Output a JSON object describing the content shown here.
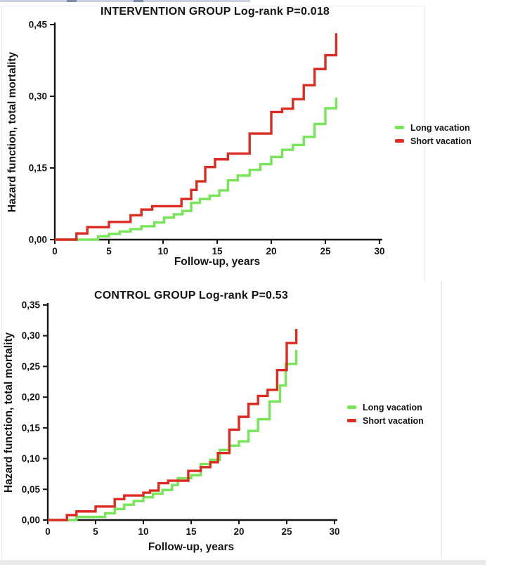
{
  "chart_data": [
    {
      "type": "line",
      "step": true,
      "title": "INTERVENTION GROUP Log-rank P=0.018",
      "xlabel": "Follow-up, years",
      "ylabel": "Hazard function, total mortality",
      "xlim": [
        0,
        30
      ],
      "ylim": [
        0,
        0.45
      ],
      "grid": false,
      "legend_position": "right",
      "x_ticks": [
        "0",
        "5",
        "10",
        "15",
        "20",
        "25",
        "30"
      ],
      "y_ticks": [
        {
          "value": 0.0,
          "label": "0,00"
        },
        {
          "value": 0.15,
          "label": "0,15"
        },
        {
          "value": 0.3,
          "label": "0,30"
        },
        {
          "value": 0.45,
          "label": "0,45"
        }
      ],
      "series": [
        {
          "name": "Long vacation",
          "color": "#76e558",
          "points": [
            [
              0,
              0
            ],
            [
              4,
              0.007
            ],
            [
              5,
              0.012
            ],
            [
              6,
              0.017
            ],
            [
              7,
              0.022
            ],
            [
              8,
              0.028
            ],
            [
              9.2,
              0.036
            ],
            [
              10.1,
              0.046
            ],
            [
              11,
              0.053
            ],
            [
              11.8,
              0.06
            ],
            [
              12.6,
              0.077
            ],
            [
              13.4,
              0.085
            ],
            [
              14.3,
              0.092
            ],
            [
              15.2,
              0.103
            ],
            [
              16,
              0.124
            ],
            [
              16.9,
              0.134
            ],
            [
              18,
              0.146
            ],
            [
              19,
              0.158
            ],
            [
              20,
              0.173
            ],
            [
              21,
              0.188
            ],
            [
              22,
              0.198
            ],
            [
              23,
              0.215
            ],
            [
              24,
              0.242
            ],
            [
              25,
              0.275
            ],
            [
              26,
              0.297
            ]
          ]
        },
        {
          "name": "Short vacation",
          "color": "#dc2b22",
          "points": [
            [
              0,
              0
            ],
            [
              2,
              0.013
            ],
            [
              3,
              0.026
            ],
            [
              5,
              0.037
            ],
            [
              7,
              0.051
            ],
            [
              8,
              0.063
            ],
            [
              9,
              0.07
            ],
            [
              11.7,
              0.085
            ],
            [
              12.6,
              0.104
            ],
            [
              13.1,
              0.122
            ],
            [
              13.9,
              0.152
            ],
            [
              14.8,
              0.168
            ],
            [
              16,
              0.18
            ],
            [
              18,
              0.222
            ],
            [
              20,
              0.267
            ],
            [
              21,
              0.274
            ],
            [
              22,
              0.294
            ],
            [
              23,
              0.323
            ],
            [
              24,
              0.357
            ],
            [
              25,
              0.386
            ],
            [
              26,
              0.432
            ]
          ]
        }
      ]
    },
    {
      "type": "line",
      "step": true,
      "title": "CONTROL GROUP Log-rank P=0.53",
      "xlabel": "Follow-up, years",
      "ylabel": "Hazard function, total mortality",
      "xlim": [
        0,
        30
      ],
      "ylim": [
        0,
        0.35
      ],
      "grid": false,
      "legend_position": "right",
      "x_ticks": [
        "0",
        "5",
        "10",
        "15",
        "20",
        "25",
        "30"
      ],
      "y_ticks": [
        {
          "value": 0.0,
          "label": "0,00"
        },
        {
          "value": 0.05,
          "label": "0,05"
        },
        {
          "value": 0.1,
          "label": "0,10"
        },
        {
          "value": 0.15,
          "label": "0,15"
        },
        {
          "value": 0.2,
          "label": "0,20"
        },
        {
          "value": 0.25,
          "label": "0,25"
        },
        {
          "value": 0.3,
          "label": "0,30"
        },
        {
          "value": 0.35,
          "label": "0,35"
        }
      ],
      "series": [
        {
          "name": "Long vacation",
          "color": "#76e558",
          "points": [
            [
              0,
              0
            ],
            [
              3,
              0.005
            ],
            [
              6,
              0.011
            ],
            [
              7,
              0.018
            ],
            [
              8,
              0.025
            ],
            [
              9,
              0.031
            ],
            [
              10,
              0.037
            ],
            [
              11,
              0.043
            ],
            [
              12,
              0.049
            ],
            [
              13,
              0.057
            ],
            [
              13.6,
              0.068
            ],
            [
              15,
              0.073
            ],
            [
              16,
              0.091
            ],
            [
              17,
              0.098
            ],
            [
              18,
              0.114
            ],
            [
              19,
              0.121
            ],
            [
              20,
              0.128
            ],
            [
              21,
              0.145
            ],
            [
              22,
              0.164
            ],
            [
              23.2,
              0.193
            ],
            [
              24.3,
              0.219
            ],
            [
              24.9,
              0.254
            ],
            [
              26,
              0.277
            ]
          ]
        },
        {
          "name": "Short vacation",
          "color": "#dc2b22",
          "points": [
            [
              0,
              0
            ],
            [
              2,
              0.008
            ],
            [
              3,
              0.014
            ],
            [
              5,
              0.022
            ],
            [
              7,
              0.034
            ],
            [
              8,
              0.04
            ],
            [
              10,
              0.0445
            ],
            [
              10.7,
              0.048
            ],
            [
              11.6,
              0.06
            ],
            [
              12.6,
              0.064
            ],
            [
              14.7,
              0.08
            ],
            [
              16,
              0.086
            ],
            [
              17,
              0.094
            ],
            [
              17.8,
              0.109
            ],
            [
              19,
              0.147
            ],
            [
              20,
              0.168
            ],
            [
              21,
              0.189
            ],
            [
              22,
              0.202
            ],
            [
              23,
              0.212
            ],
            [
              24,
              0.244
            ],
            [
              25,
              0.288
            ],
            [
              26,
              0.311
            ]
          ]
        }
      ]
    }
  ]
}
